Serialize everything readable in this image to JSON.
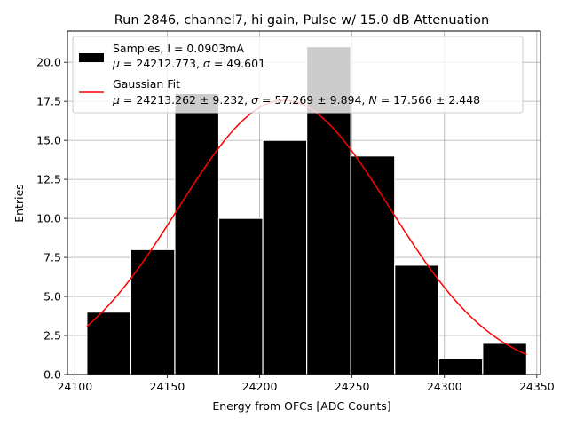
{
  "chart_data": {
    "type": "bar",
    "title": "Run 2846, channel7, hi gain, Pulse w/ 15.0 dB Attenuation",
    "xlabel": "Energy from OFCs [ADC Counts]",
    "ylabel": "Entries",
    "xlim": [
      24096,
      24352
    ],
    "ylim": [
      0,
      22
    ],
    "grid": true,
    "legend_position": "top",
    "xticks": [
      24100,
      24150,
      24200,
      24250,
      24300,
      24350
    ],
    "yticks": [
      0.0,
      2.5,
      5.0,
      7.5,
      10.0,
      12.5,
      15.0,
      17.5,
      20.0
    ],
    "xtick_labels": [
      "24100",
      "24150",
      "24200",
      "24250",
      "24300",
      "24350"
    ],
    "ytick_labels": [
      "0.0",
      "2.5",
      "5.0",
      "7.5",
      "10.0",
      "12.5",
      "15.0",
      "17.5",
      "20.0"
    ],
    "histogram": {
      "bin_edges": [
        24106.5,
        24130.3,
        24154.1,
        24177.9,
        24201.7,
        24225.5,
        24249.3,
        24273.1,
        24296.9,
        24320.7,
        24344.5
      ],
      "counts": [
        4,
        8,
        18,
        10,
        15,
        21,
        14,
        7,
        1,
        2
      ],
      "color": "#000000",
      "edgecolor": "#ffffff"
    },
    "fit": {
      "mu": 24213.262,
      "sigma": 57.269,
      "N": 17.566,
      "x_range": [
        24106.5,
        24344.5
      ],
      "color": "#ff0000"
    },
    "legend": [
      {
        "kind": "patch",
        "color": "#000000",
        "line1": "Samples, I = 0.0903mA",
        "line2": {
          "mu_sym": "μ",
          "mu_val": " = 24212.773, ",
          "sigma_sym": "σ",
          "sigma_val": " = 49.601"
        }
      },
      {
        "kind": "line",
        "color": "#ff0000",
        "line1": "Gaussian Fit",
        "line2": {
          "mu_sym": "μ",
          "mu_val": " = 24213.262 ± 9.232, ",
          "sigma_sym": "σ",
          "sigma_val": " = 57.269 ± 9.894, ",
          "n_sym": "N",
          "n_val": " = 17.566 ± 2.448"
        }
      }
    ]
  }
}
